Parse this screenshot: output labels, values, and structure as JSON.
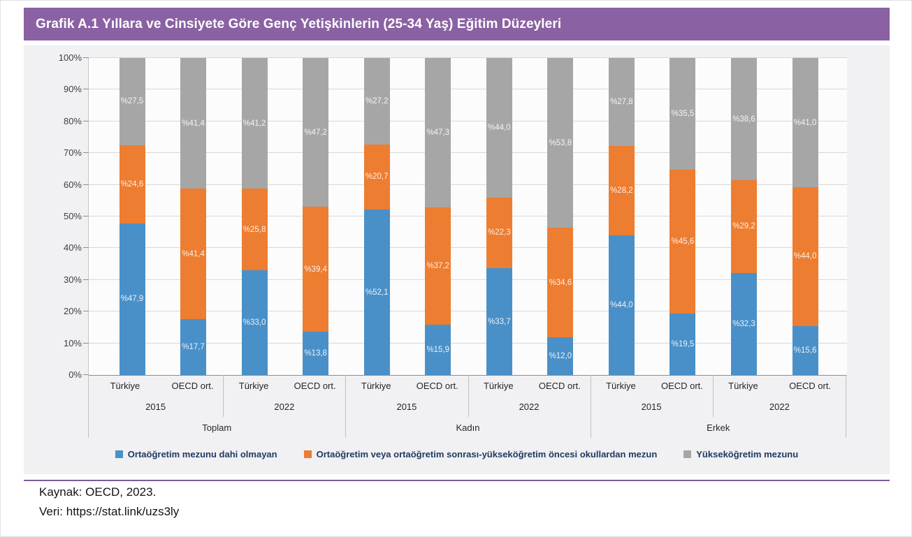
{
  "header": {
    "title": "Grafik A.1 Yıllara ve Cinsiyete Göre Genç Yetişkinlerin (25-34 Yaş) Eğitim Düzeyleri"
  },
  "footer": {
    "source": "Kaynak: OECD, 2023.",
    "data_link": "Veri: https://stat.link/uzs3ly"
  },
  "colors": {
    "header_bg": "#8a62a3",
    "card_bg": "#f1f0f2",
    "plot_bg": "#fcfcfd",
    "gridline": "#d8d8d8",
    "axis_line": "#8e8e8e",
    "separator_line": "#c2c2c2",
    "footer_rule": "#7b5b9b",
    "series_blue": "#4a90c8",
    "series_orange": "#ed7d31",
    "series_gray": "#a6a6a6"
  },
  "chart_data": {
    "type": "bar",
    "subtype": "stacked-100-percent",
    "grid": true,
    "legend_position": "bottom",
    "ylim": [
      0,
      100
    ],
    "yticks": [
      "0%",
      "10%",
      "20%",
      "30%",
      "40%",
      "50%",
      "60%",
      "70%",
      "80%",
      "90%",
      "100%"
    ],
    "groups": [
      "Toplam",
      "Kadın",
      "Erkek"
    ],
    "years": [
      "2015",
      "2022"
    ],
    "series": [
      {
        "name": "Ortaöğretim mezunu dahi olmayan",
        "color": "#4a90c8"
      },
      {
        "name": "Ortaöğretim veya ortaöğretim sonrası-yükseköğretim öncesi okullardan mezun",
        "color": "#ed7d31"
      },
      {
        "name": "Yükseköğretim mezunu",
        "color": "#a6a6a6"
      }
    ],
    "bars": [
      {
        "group": "Toplam",
        "year": "2015",
        "label": "Türkiye",
        "values": [
          47.9,
          24.6,
          27.5
        ],
        "labels": [
          "%47,9",
          "%24,6",
          "%27,5"
        ]
      },
      {
        "group": "Toplam",
        "year": "2015",
        "label": "OECD ort.",
        "values": [
          17.7,
          41.4,
          41.4
        ],
        "labels": [
          "%17,7",
          "%41,4",
          "%41,4"
        ]
      },
      {
        "group": "Toplam",
        "year": "2022",
        "label": "Türkiye",
        "values": [
          33.0,
          25.8,
          41.2
        ],
        "labels": [
          "%33,0",
          "%25,8",
          "%41,2"
        ]
      },
      {
        "group": "Toplam",
        "year": "2022",
        "label": "OECD ort.",
        "values": [
          13.8,
          39.4,
          47.2
        ],
        "labels": [
          "%13,8",
          "%39,4",
          "%47,2"
        ]
      },
      {
        "group": "Kadın",
        "year": "2015",
        "label": "Türkiye",
        "values": [
          52.1,
          20.7,
          27.2
        ],
        "labels": [
          "%52,1",
          "%20,7",
          "%27,2"
        ]
      },
      {
        "group": "Kadın",
        "year": "2015",
        "label": "OECD ort.",
        "values": [
          15.9,
          37.2,
          47.3
        ],
        "labels": [
          "%15,9",
          "%37,2",
          "%47,3"
        ]
      },
      {
        "group": "Kadın",
        "year": "2022",
        "label": "Türkiye",
        "values": [
          33.7,
          22.3,
          44.0
        ],
        "labels": [
          "%33,7",
          "%22,3",
          "%44,0"
        ]
      },
      {
        "group": "Kadın",
        "year": "2022",
        "label": "OECD ort.",
        "values": [
          12.0,
          34.6,
          53.8
        ],
        "labels": [
          "%12,0",
          "%34,6",
          "%53,8"
        ]
      },
      {
        "group": "Erkek",
        "year": "2015",
        "label": "Türkiye",
        "values": [
          44.0,
          28.2,
          27.8
        ],
        "labels": [
          "%44,0",
          "%28,2",
          "%27,8"
        ]
      },
      {
        "group": "Erkek",
        "year": "2015",
        "label": "OECD ort.",
        "values": [
          19.5,
          45.6,
          35.5
        ],
        "labels": [
          "%19,5",
          "%45,6",
          "%35,5"
        ]
      },
      {
        "group": "Erkek",
        "year": "2022",
        "label": "Türkiye",
        "values": [
          32.3,
          29.2,
          38.6
        ],
        "labels": [
          "%32,3",
          "%29,2",
          "%38,6"
        ]
      },
      {
        "group": "Erkek",
        "year": "2022",
        "label": "OECD ort.",
        "values": [
          15.6,
          44.0,
          41.0
        ],
        "labels": [
          "%15,6",
          "%44,0",
          "%41,0"
        ]
      }
    ]
  }
}
